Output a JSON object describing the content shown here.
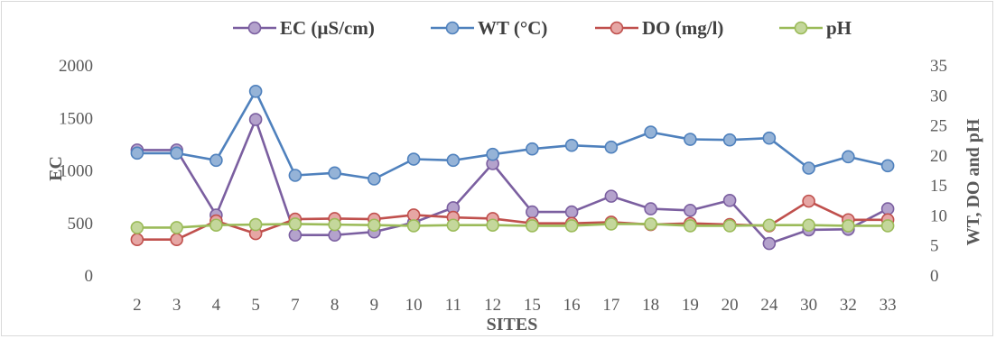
{
  "chart_data": {
    "type": "line",
    "xlabel": "SITES",
    "ylabel_left": "EC",
    "ylabel_right": "WT, DO and pH",
    "categories": [
      "2",
      "3",
      "4",
      "5",
      "7",
      "8",
      "9",
      "10",
      "11",
      "12",
      "15",
      "16",
      "17",
      "18",
      "19",
      "20",
      "24",
      "30",
      "32",
      "33"
    ],
    "ylim_left": [
      0,
      2000
    ],
    "yticks_left": [
      "0",
      "500",
      "1000",
      "1500",
      "2000"
    ],
    "ylim_right": [
      0,
      35
    ],
    "yticks_right": [
      "0",
      "5",
      "10",
      "15",
      "20",
      "25",
      "30",
      "35"
    ],
    "grid": false,
    "legend_position": "top",
    "series": [
      {
        "name": "EC (µS/cm)",
        "axis": "left",
        "color": "#7b5fa0",
        "marker_fill": "#b4a2cc",
        "values": [
          1190,
          1190,
          570,
          1480,
          380,
          380,
          410,
          500,
          640,
          1060,
          600,
          600,
          750,
          630,
          615,
          710,
          300,
          430,
          435,
          630
        ]
      },
      {
        "name": "WT (°C)",
        "axis": "right",
        "color": "#4f81bd",
        "marker_fill": "#95b3d7",
        "values": [
          20.3,
          20.3,
          19.1,
          30.6,
          16.6,
          17.0,
          16.0,
          19.3,
          19.1,
          20.1,
          21.0,
          21.6,
          21.3,
          23.8,
          22.6,
          22.5,
          22.8,
          17.8,
          19.7,
          18.2
        ]
      },
      {
        "name": "DO (mg/l)",
        "axis": "right",
        "color": "#c0504d",
        "marker_fill": "#e6a6a4",
        "values": [
          5.9,
          5.9,
          9.0,
          6.9,
          9.3,
          9.4,
          9.3,
          10.0,
          9.6,
          9.4,
          8.6,
          8.6,
          8.8,
          8.4,
          8.6,
          8.4,
          8.2,
          12.3,
          9.2,
          9.2
        ]
      },
      {
        "name": "pH",
        "axis": "right",
        "color": "#9bbb59",
        "marker_fill": "#c4d79b",
        "values": [
          7.9,
          7.9,
          8.3,
          8.4,
          8.5,
          8.4,
          8.3,
          8.2,
          8.3,
          8.3,
          8.2,
          8.2,
          8.5,
          8.5,
          8.2,
          8.2,
          8.3,
          8.3,
          8.2,
          8.2
        ]
      }
    ]
  }
}
